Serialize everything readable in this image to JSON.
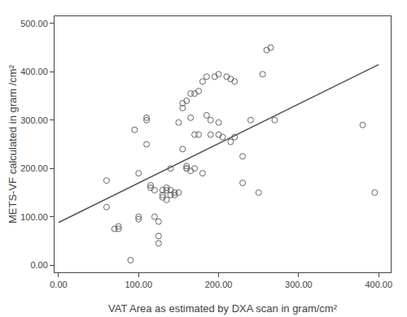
{
  "chart_data": {
    "type": "scatter",
    "xlabel": "VAT Area as estimated by DXA scan in gram/cm²",
    "ylabel": "METS-VF calculated in gram /cm²",
    "series": [
      {
        "type": "scatter",
        "marker": "circle-open",
        "color": "#666666",
        "x": [
          60,
          60,
          70,
          75,
          75,
          90,
          95,
          100,
          100,
          100,
          110,
          110,
          110,
          115,
          115,
          120,
          120,
          125,
          125,
          125,
          130,
          130,
          130,
          135,
          135,
          135,
          140,
          140,
          140,
          145,
          145,
          150,
          150,
          155,
          155,
          155,
          160,
          160,
          160,
          160,
          165,
          165,
          165,
          170,
          170,
          170,
          175,
          175,
          180,
          180,
          185,
          185,
          190,
          190,
          195,
          200,
          200,
          200,
          205,
          210,
          215,
          215,
          220,
          220,
          230,
          230,
          240,
          250,
          255,
          260,
          265,
          270,
          380,
          395
        ],
        "values": [
          120,
          175,
          75,
          75,
          80,
          10,
          280,
          95,
          100,
          190,
          250,
          300,
          305,
          160,
          165,
          100,
          155,
          45,
          60,
          90,
          140,
          145,
          155,
          135,
          155,
          160,
          145,
          155,
          200,
          145,
          150,
          150,
          295,
          240,
          325,
          335,
          200,
          200,
          205,
          340,
          195,
          305,
          355,
          200,
          270,
          355,
          270,
          360,
          190,
          380,
          310,
          390,
          270,
          300,
          390,
          270,
          295,
          395,
          265,
          390,
          255,
          385,
          265,
          380,
          170,
          225,
          300,
          150,
          395,
          445,
          450,
          300,
          290,
          150
        ]
      },
      {
        "type": "line",
        "line_style": "solid",
        "color": "#555555",
        "x": [
          0,
          400
        ],
        "values": [
          88,
          415
        ]
      }
    ],
    "xlim": [
      -5,
      415
    ],
    "ylim": [
      -15,
      515
    ],
    "xticks": [
      {
        "value": 0,
        "label": "0.00"
      },
      {
        "value": 100,
        "label": "100.00"
      },
      {
        "value": 200,
        "label": "200.00"
      },
      {
        "value": 300,
        "label": "300.00"
      },
      {
        "value": 400,
        "label": "400.00"
      }
    ],
    "yticks": [
      {
        "value": 0,
        "label": "0.00"
      },
      {
        "value": 100,
        "label": "100.00"
      },
      {
        "value": 200,
        "label": "200.00"
      },
      {
        "value": 300,
        "label": "300.00"
      },
      {
        "value": 400,
        "label": "400.00"
      },
      {
        "value": 500,
        "label": "500.00"
      }
    ],
    "grid": false
  }
}
